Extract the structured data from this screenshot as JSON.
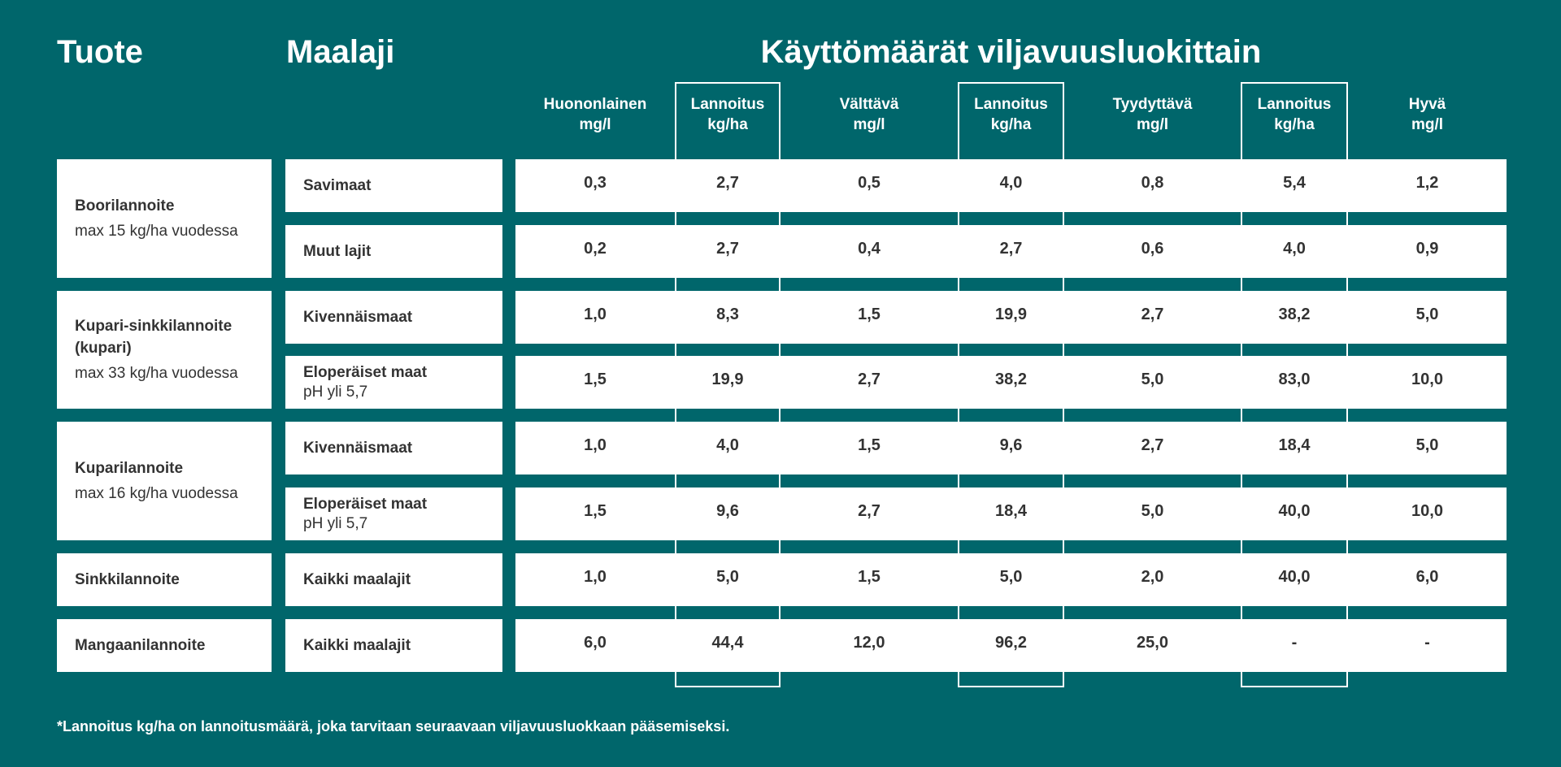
{
  "headers": {
    "product": "Tuote",
    "soil": "Maalaji",
    "amounts": "Käyttömäärät viljavuusluokittain"
  },
  "columns": [
    {
      "l1": "Huononlainen",
      "l2": "mg/l"
    },
    {
      "l1": "Lannoitus",
      "l2": "kg/ha"
    },
    {
      "l1": "Välttävä",
      "l2": "mg/l"
    },
    {
      "l1": "Lannoitus",
      "l2": "kg/ha"
    },
    {
      "l1": "Tyydyttävä",
      "l2": "mg/l"
    },
    {
      "l1": "Lannoitus",
      "l2": "kg/ha"
    },
    {
      "l1": "Hyvä",
      "l2": "mg/l"
    }
  ],
  "products": [
    {
      "name": "Boorilannoite",
      "name2": "",
      "limit": "max 15 kg/ha vuodessa"
    },
    {
      "name": "Kupari-sinkkilannoite",
      "name2": "(kupari)",
      "limit": "max 33 kg/ha vuodessa"
    },
    {
      "name": "Kuparilannoite",
      "name2": "",
      "limit": "max 16 kg/ha vuodessa"
    },
    {
      "name": "Sinkkilannoite",
      "name2": "",
      "limit": ""
    },
    {
      "name": "Mangaanilannoite",
      "name2": "",
      "limit": ""
    }
  ],
  "rows": [
    {
      "soil": "Savimaat",
      "note": "",
      "values": [
        "0,3",
        "2,7",
        "0,5",
        "4,0",
        "0,8",
        "5,4",
        "1,2"
      ]
    },
    {
      "soil": "Muut lajit",
      "note": "",
      "values": [
        "0,2",
        "2,7",
        "0,4",
        "2,7",
        "0,6",
        "4,0",
        "0,9"
      ]
    },
    {
      "soil": "Kivennäismaat",
      "note": "",
      "values": [
        "1,0",
        "8,3",
        "1,5",
        "19,9",
        "2,7",
        "38,2",
        "5,0"
      ]
    },
    {
      "soil": "Eloperäiset maat",
      "note": "pH yli 5,7",
      "values": [
        "1,5",
        "19,9",
        "2,7",
        "38,2",
        "5,0",
        "83,0",
        "10,0"
      ]
    },
    {
      "soil": "Kivennäismaat",
      "note": "",
      "values": [
        "1,0",
        "4,0",
        "1,5",
        "9,6",
        "2,7",
        "18,4",
        "5,0"
      ]
    },
    {
      "soil": "Eloperäiset maat",
      "note": "pH yli 5,7",
      "values": [
        "1,5",
        "9,6",
        "2,7",
        "18,4",
        "5,0",
        "40,0",
        "10,0"
      ]
    },
    {
      "soil": "Kaikki maalajit",
      "note": "",
      "values": [
        "1,0",
        "5,0",
        "1,5",
        "5,0",
        "2,0",
        "40,0",
        "6,0"
      ]
    },
    {
      "soil": "Kaikki maalajit",
      "note": "",
      "values": [
        "6,0",
        "44,4",
        "12,0",
        "96,2",
        "25,0",
        "-",
        "-"
      ]
    }
  ],
  "footnote": "*Lannoitus kg/ha on lannoitusmäärä, joka tarvitaan seuraavaan viljavuusluokkaan pääsemiseksi.",
  "colors": {
    "background": "#00666b",
    "cell": "#ffffff",
    "text": "#333333"
  }
}
